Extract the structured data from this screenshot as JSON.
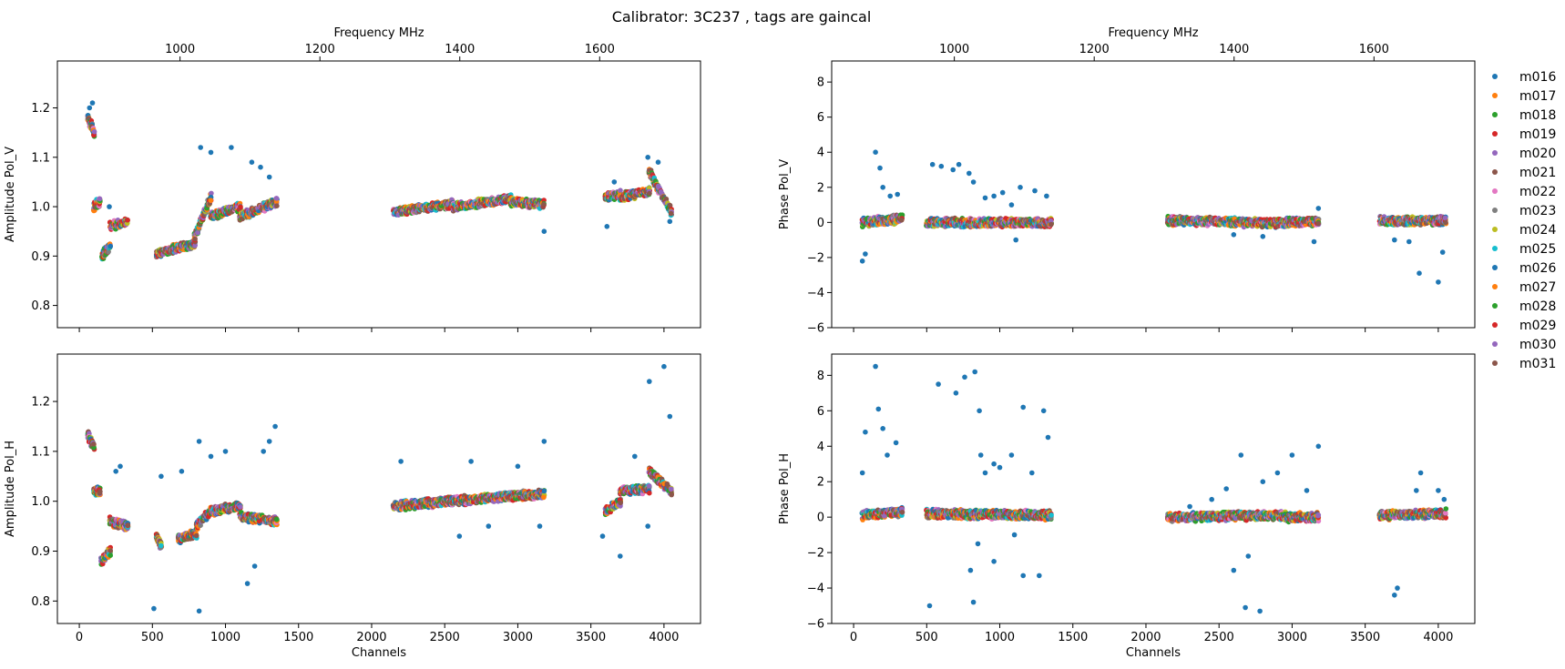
{
  "chart_data": {
    "type": "scatter",
    "title": "Calibrator: 3C237 , tags are gaincal",
    "x_channel_ticks": [
      0,
      500,
      1000,
      1500,
      2000,
      2500,
      3000,
      3500,
      4000
    ],
    "x_freq_ticks": [
      1000,
      1200,
      1400,
      1600
    ],
    "xlim_channels": [
      -150,
      4250
    ],
    "freq_xlabel": "Frequency MHz",
    "channel_xlabel": "Channels",
    "legend": {
      "placement": "right",
      "entries": [
        "m016",
        "m017",
        "m018",
        "m019",
        "m020",
        "m021",
        "m022",
        "m023",
        "m024",
        "m025",
        "m026",
        "m027",
        "m028",
        "m029",
        "m030",
        "m031"
      ],
      "colors": [
        "#1f77b4",
        "#ff7f0e",
        "#2ca02c",
        "#d62728",
        "#9467bd",
        "#8c564b",
        "#e377c2",
        "#7f7f7f",
        "#bcbd22",
        "#17becf",
        "#1f77b4",
        "#ff7f0e",
        "#2ca02c",
        "#d62728",
        "#9467bd",
        "#8c564b"
      ]
    },
    "panels": [
      {
        "id": "amp_v",
        "ylabel": "Amplitude Pol_V",
        "ylim": [
          0.755,
          1.295
        ],
        "yticks": [
          "0.8",
          "0.9",
          "1.0",
          "1.1",
          "1.2"
        ],
        "show_top_freq_axis": true,
        "show_channel_ticklabels": false,
        "segments": [
          {
            "x": [
              60,
              100
            ],
            "y": [
              1.18,
              1.15
            ]
          },
          {
            "x": [
              100,
              140
            ],
            "y": [
              1.0,
              1.01
            ]
          },
          {
            "x": [
              155,
              210
            ],
            "y": [
              0.9,
              0.92
            ]
          },
          {
            "x": [
              210,
              330
            ],
            "y": [
              0.96,
              0.97
            ]
          },
          {
            "x": [
              530,
              640
            ],
            "y": [
              0.905,
              0.915
            ]
          },
          {
            "x": [
              640,
              790
            ],
            "y": [
              0.915,
              0.925
            ]
          },
          {
            "x": [
              790,
              900
            ],
            "y": [
              0.94,
              1.02
            ]
          },
          {
            "x": [
              900,
              1100
            ],
            "y": [
              0.98,
              1.0
            ]
          },
          {
            "x": [
              1100,
              1350
            ],
            "y": [
              0.98,
              1.01
            ]
          },
          {
            "x": [
              2150,
              2550
            ],
            "y": [
              0.99,
              1.005
            ]
          },
          {
            "x": [
              2550,
              2950
            ],
            "y": [
              1.0,
              1.015
            ]
          },
          {
            "x": [
              2950,
              3180
            ],
            "y": [
              1.01,
              1.005
            ]
          },
          {
            "x": [
              3600,
              3700
            ],
            "y": [
              1.02,
              1.025
            ]
          },
          {
            "x": [
              3700,
              3900
            ],
            "y": [
              1.02,
              1.03
            ]
          },
          {
            "x": [
              3900,
              4050
            ],
            "y": [
              1.07,
              0.99
            ]
          }
        ],
        "outliers": [
          {
            "x": 70,
            "y": 1.2
          },
          {
            "x": 90,
            "y": 1.21
          },
          {
            "x": 205,
            "y": 1.0
          },
          {
            "x": 1040,
            "y": 1.12
          },
          {
            "x": 830,
            "y": 1.12
          },
          {
            "x": 900,
            "y": 1.11
          },
          {
            "x": 1180,
            "y": 1.09
          },
          {
            "x": 1240,
            "y": 1.08
          },
          {
            "x": 1300,
            "y": 1.06
          },
          {
            "x": 3180,
            "y": 0.95
          },
          {
            "x": 3610,
            "y": 0.96
          },
          {
            "x": 3890,
            "y": 1.1
          },
          {
            "x": 3960,
            "y": 1.09
          },
          {
            "x": 4040,
            "y": 0.97
          },
          {
            "x": 3660,
            "y": 1.05
          }
        ]
      },
      {
        "id": "phase_v",
        "ylabel": "Phase Pol_V",
        "ylim": [
          -6,
          9.2
        ],
        "yticks": [
          "−6",
          "−4",
          "−2",
          "0",
          "2",
          "4",
          "6",
          "8"
        ],
        "show_top_freq_axis": true,
        "show_channel_ticklabels": false,
        "segments": [
          {
            "x": [
              60,
              330
            ],
            "y": [
              0.0,
              0.2
            ]
          },
          {
            "x": [
              500,
              1350
            ],
            "y": [
              0.0,
              0.0
            ]
          },
          {
            "x": [
              2150,
              2950
            ],
            "y": [
              0.1,
              -0.05
            ]
          },
          {
            "x": [
              2950,
              3180
            ],
            "y": [
              0.0,
              0.05
            ]
          },
          {
            "x": [
              3600,
              4050
            ],
            "y": [
              0.1,
              0.1
            ]
          }
        ],
        "outliers": [
          {
            "x": 60,
            "y": -2.2
          },
          {
            "x": 80,
            "y": -1.8
          },
          {
            "x": 150,
            "y": 4.0
          },
          {
            "x": 180,
            "y": 3.1
          },
          {
            "x": 200,
            "y": 2.0
          },
          {
            "x": 250,
            "y": 1.5
          },
          {
            "x": 300,
            "y": 1.6
          },
          {
            "x": 540,
            "y": 3.3
          },
          {
            "x": 600,
            "y": 3.2
          },
          {
            "x": 680,
            "y": 3.0
          },
          {
            "x": 720,
            "y": 3.3
          },
          {
            "x": 790,
            "y": 2.8
          },
          {
            "x": 820,
            "y": 2.3
          },
          {
            "x": 900,
            "y": 1.4
          },
          {
            "x": 960,
            "y": 1.5
          },
          {
            "x": 1020,
            "y": 1.7
          },
          {
            "x": 1080,
            "y": 1.0
          },
          {
            "x": 1140,
            "y": 2.0
          },
          {
            "x": 1240,
            "y": 1.8
          },
          {
            "x": 1320,
            "y": 1.5
          },
          {
            "x": 1110,
            "y": -1.0
          },
          {
            "x": 2600,
            "y": -0.7
          },
          {
            "x": 2800,
            "y": -0.8
          },
          {
            "x": 3150,
            "y": -1.1
          },
          {
            "x": 3700,
            "y": -1.0
          },
          {
            "x": 3800,
            "y": -1.1
          },
          {
            "x": 3870,
            "y": -2.9
          },
          {
            "x": 4000,
            "y": -3.4
          },
          {
            "x": 4030,
            "y": -1.7
          },
          {
            "x": 3180,
            "y": 0.8
          }
        ]
      },
      {
        "id": "amp_h",
        "ylabel": "Amplitude Pol_H",
        "ylim": [
          0.755,
          1.295
        ],
        "yticks": [
          "0.8",
          "0.9",
          "1.0",
          "1.1",
          "1.2"
        ],
        "show_top_freq_axis": false,
        "show_channel_ticklabels": true,
        "segments": [
          {
            "x": [
              60,
              100
            ],
            "y": [
              1.13,
              1.11
            ]
          },
          {
            "x": [
              100,
              140
            ],
            "y": [
              1.02,
              1.02
            ]
          },
          {
            "x": [
              150,
              210
            ],
            "y": [
              0.88,
              0.9
            ]
          },
          {
            "x": [
              210,
              330
            ],
            "y": [
              0.96,
              0.95
            ]
          },
          {
            "x": [
              530,
              560
            ],
            "y": [
              0.93,
              0.91
            ]
          },
          {
            "x": [
              680,
              800
            ],
            "y": [
              0.925,
              0.935
            ]
          },
          {
            "x": [
              800,
              900
            ],
            "y": [
              0.95,
              0.98
            ]
          },
          {
            "x": [
              900,
              1100
            ],
            "y": [
              0.98,
              0.99
            ]
          },
          {
            "x": [
              1100,
              1350
            ],
            "y": [
              0.97,
              0.96
            ]
          },
          {
            "x": [
              2150,
              2550
            ],
            "y": [
              0.99,
              1.0
            ]
          },
          {
            "x": [
              2550,
              2950
            ],
            "y": [
              1.0,
              1.01
            ]
          },
          {
            "x": [
              2950,
              3180
            ],
            "y": [
              1.01,
              1.015
            ]
          },
          {
            "x": [
              3600,
              3700
            ],
            "y": [
              0.98,
              1.0
            ]
          },
          {
            "x": [
              3700,
              3900
            ],
            "y": [
              1.02,
              1.025
            ]
          },
          {
            "x": [
              3900,
              4050
            ],
            "y": [
              1.06,
              1.02
            ]
          }
        ],
        "outliers": [
          {
            "x": 510,
            "y": 0.785
          },
          {
            "x": 820,
            "y": 0.78
          },
          {
            "x": 1150,
            "y": 0.835
          },
          {
            "x": 1200,
            "y": 0.87
          },
          {
            "x": 1340,
            "y": 1.15
          },
          {
            "x": 1300,
            "y": 1.12
          },
          {
            "x": 1260,
            "y": 1.1
          },
          {
            "x": 1000,
            "y": 1.1
          },
          {
            "x": 820,
            "y": 1.12
          },
          {
            "x": 900,
            "y": 1.09
          },
          {
            "x": 560,
            "y": 1.05
          },
          {
            "x": 700,
            "y": 1.06
          },
          {
            "x": 280,
            "y": 1.07
          },
          {
            "x": 250,
            "y": 1.06
          },
          {
            "x": 2200,
            "y": 1.08
          },
          {
            "x": 2600,
            "y": 0.93
          },
          {
            "x": 2680,
            "y": 1.08
          },
          {
            "x": 2800,
            "y": 0.95
          },
          {
            "x": 3000,
            "y": 1.07
          },
          {
            "x": 3180,
            "y": 1.12
          },
          {
            "x": 3150,
            "y": 0.95
          },
          {
            "x": 3580,
            "y": 0.93
          },
          {
            "x": 3700,
            "y": 0.89
          },
          {
            "x": 3800,
            "y": 1.09
          },
          {
            "x": 3900,
            "y": 1.24
          },
          {
            "x": 4000,
            "y": 1.27
          },
          {
            "x": 4040,
            "y": 1.17
          },
          {
            "x": 3890,
            "y": 0.95
          }
        ]
      },
      {
        "id": "phase_h",
        "ylabel": "Phase Pol_H",
        "ylim": [
          -6,
          9.2
        ],
        "yticks": [
          "−6",
          "−4",
          "−2",
          "0",
          "2",
          "4",
          "6",
          "8"
        ],
        "show_top_freq_axis": false,
        "show_channel_ticklabels": true,
        "segments": [
          {
            "x": [
              60,
              330
            ],
            "y": [
              0.1,
              0.3
            ]
          },
          {
            "x": [
              500,
              1350
            ],
            "y": [
              0.2,
              0.1
            ]
          },
          {
            "x": [
              2150,
              2950
            ],
            "y": [
              0.0,
              0.1
            ]
          },
          {
            "x": [
              2950,
              3180
            ],
            "y": [
              0.0,
              0.0
            ]
          },
          {
            "x": [
              3600,
              4050
            ],
            "y": [
              0.1,
              0.2
            ]
          }
        ],
        "outliers": [
          {
            "x": 60,
            "y": 2.5
          },
          {
            "x": 80,
            "y": 4.8
          },
          {
            "x": 150,
            "y": 8.5
          },
          {
            "x": 170,
            "y": 6.1
          },
          {
            "x": 200,
            "y": 5.0
          },
          {
            "x": 230,
            "y": 3.5
          },
          {
            "x": 290,
            "y": 4.2
          },
          {
            "x": 520,
            "y": -5.0
          },
          {
            "x": 580,
            "y": 7.5
          },
          {
            "x": 700,
            "y": 7.0
          },
          {
            "x": 760,
            "y": 7.9
          },
          {
            "x": 830,
            "y": 8.2
          },
          {
            "x": 860,
            "y": 6.0
          },
          {
            "x": 870,
            "y": 3.5
          },
          {
            "x": 900,
            "y": 2.5
          },
          {
            "x": 960,
            "y": 3.0
          },
          {
            "x": 1000,
            "y": 2.8
          },
          {
            "x": 1080,
            "y": 3.5
          },
          {
            "x": 1160,
            "y": 6.2
          },
          {
            "x": 1220,
            "y": 2.5
          },
          {
            "x": 1300,
            "y": 6.0
          },
          {
            "x": 1330,
            "y": 4.5
          },
          {
            "x": 800,
            "y": -3.0
          },
          {
            "x": 850,
            "y": -1.5
          },
          {
            "x": 960,
            "y": -2.5
          },
          {
            "x": 1100,
            "y": -1.0
          },
          {
            "x": 1160,
            "y": -3.3
          },
          {
            "x": 1270,
            "y": -3.3
          },
          {
            "x": 820,
            "y": -4.8
          },
          {
            "x": 2300,
            "y": 0.6
          },
          {
            "x": 2450,
            "y": 1.0
          },
          {
            "x": 2550,
            "y": 1.6
          },
          {
            "x": 2600,
            "y": -3.0
          },
          {
            "x": 2650,
            "y": 3.5
          },
          {
            "x": 2680,
            "y": -5.1
          },
          {
            "x": 2700,
            "y": -2.2
          },
          {
            "x": 2780,
            "y": -5.3
          },
          {
            "x": 2800,
            "y": 2.0
          },
          {
            "x": 2900,
            "y": 2.5
          },
          {
            "x": 3000,
            "y": 3.5
          },
          {
            "x": 3100,
            "y": 1.5
          },
          {
            "x": 3180,
            "y": 4.0
          },
          {
            "x": 3720,
            "y": -4.0
          },
          {
            "x": 3700,
            "y": -4.4
          },
          {
            "x": 3850,
            "y": 1.5
          },
          {
            "x": 3880,
            "y": 2.5
          },
          {
            "x": 4000,
            "y": 1.5
          },
          {
            "x": 4040,
            "y": 1.0
          }
        ]
      }
    ]
  }
}
